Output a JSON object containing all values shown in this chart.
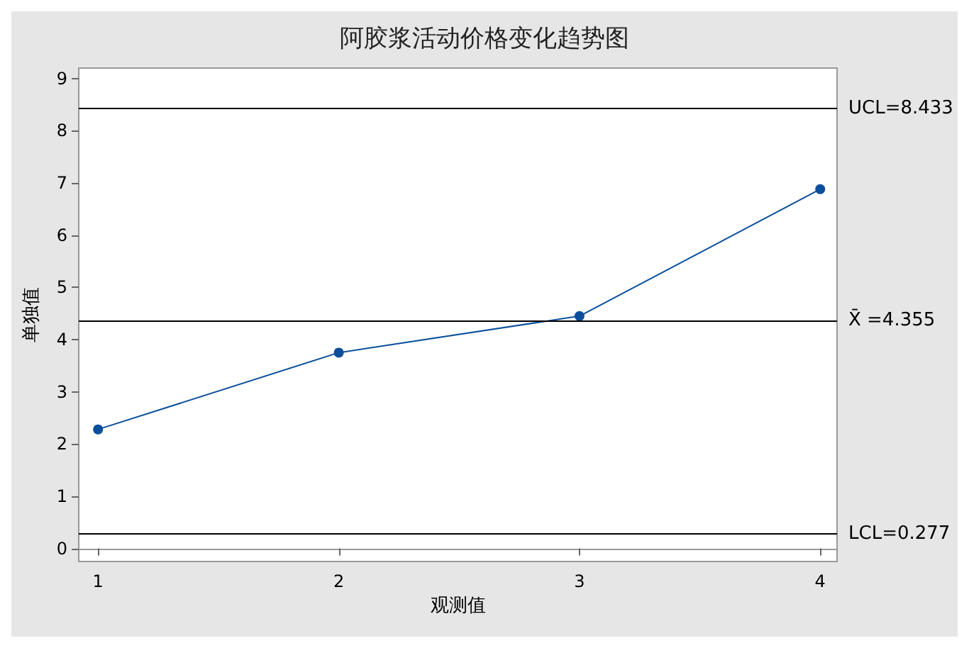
{
  "chart_data": {
    "type": "line",
    "title": "阿胶浆活动价格变化趋势图",
    "xlabel": "观测值",
    "ylabel": "单独值",
    "x": [
      1,
      2,
      3,
      4
    ],
    "series": [
      {
        "color": "#0b4f9c",
        "values": [
          2.28,
          3.75,
          4.45,
          6.88
        ]
      }
    ],
    "xlim": [
      0.92,
      4.07
    ],
    "xticks": [
      1,
      2,
      3,
      4
    ],
    "ylim": [
      -0.25,
      9.2
    ],
    "yticks": [
      0,
      1,
      2,
      3,
      4,
      5,
      6,
      7,
      8,
      9
    ],
    "ref_lines": [
      {
        "axis": "y",
        "value": 8.433,
        "label": "UCL=8.433"
      },
      {
        "axis": "y",
        "value": 4.355,
        "label": "X̄ =4.355"
      },
      {
        "axis": "y",
        "value": 0.277,
        "label": "LCL=0.277"
      }
    ],
    "marker": "circle",
    "line_style": "solid"
  }
}
